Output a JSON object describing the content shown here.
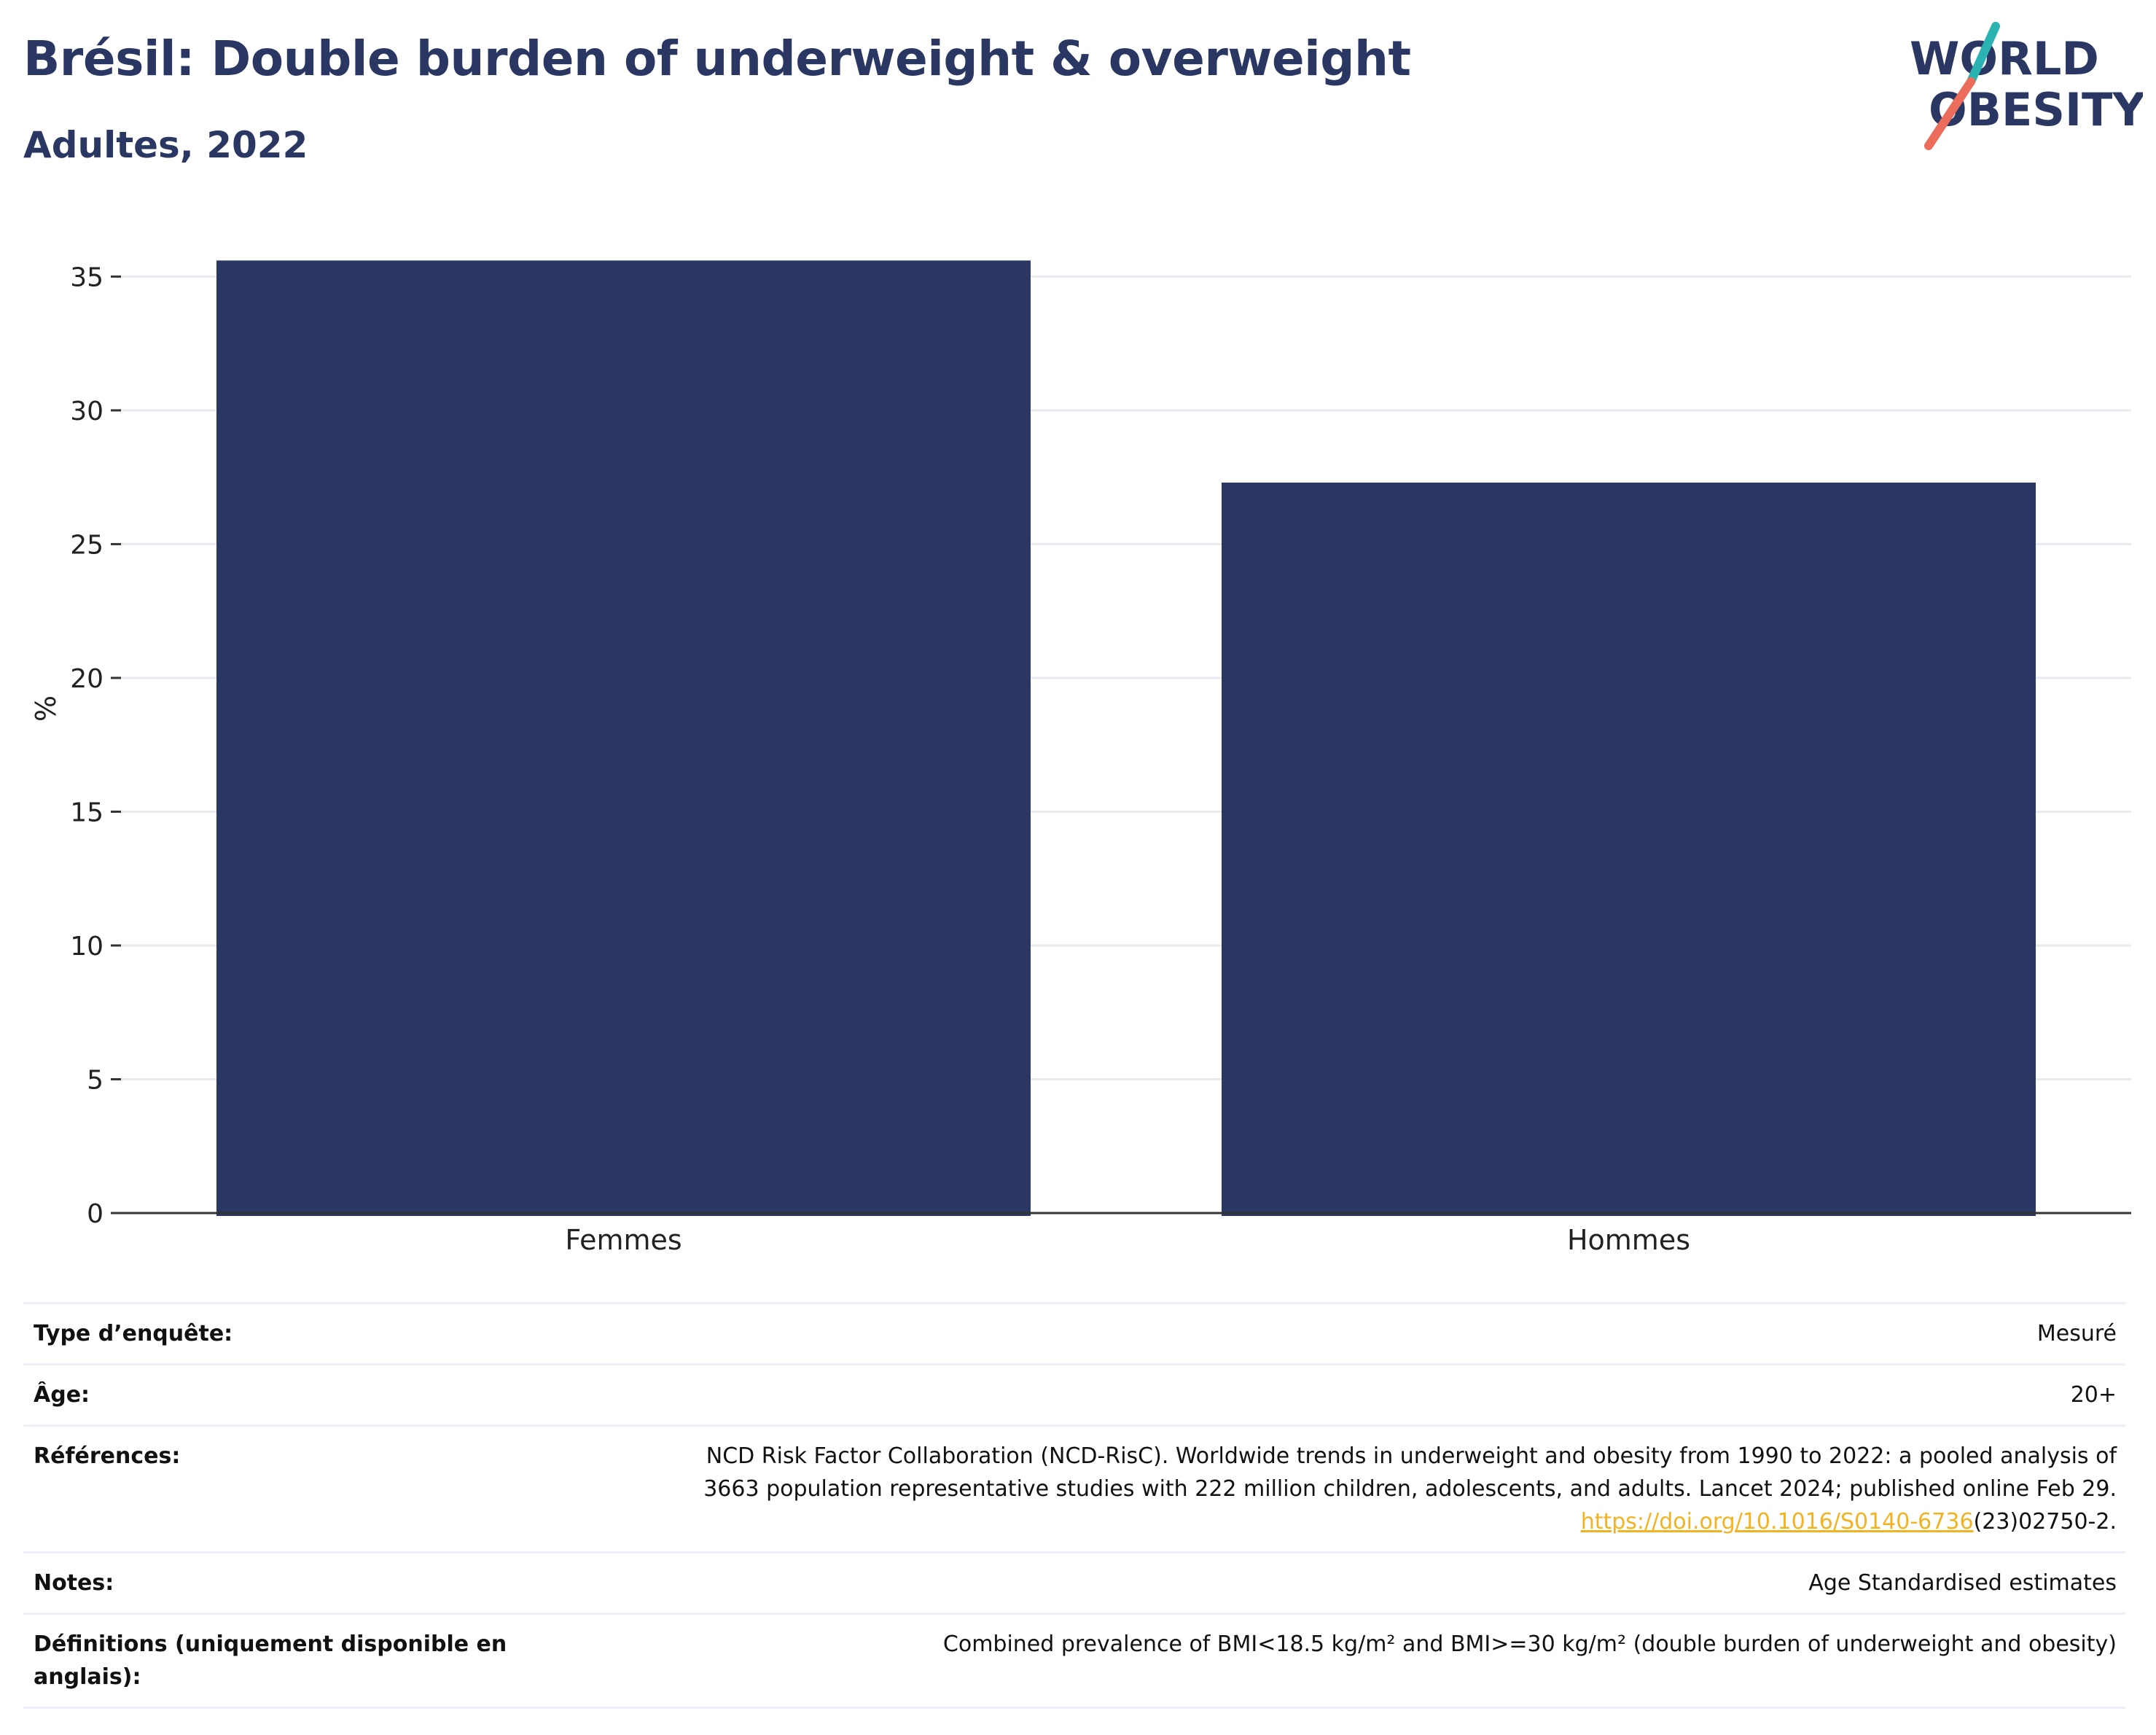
{
  "header": {
    "title": "Brésil: Double burden of underweight & overweight",
    "subtitle": "Adultes, 2022"
  },
  "logo": {
    "line1": "WORLD",
    "line2": "OBESITY",
    "text_color": "#2b3763",
    "accent_teal": "#2ab3b1",
    "accent_coral": "#ec6d5c"
  },
  "chart_data": {
    "type": "bar",
    "categories": [
      "Femmes",
      "Hommes"
    ],
    "values": [
      35.6,
      27.3
    ],
    "ylabel": "%",
    "ylim": [
      0,
      36.4
    ],
    "yticks": [
      0,
      5,
      10,
      15,
      20,
      25,
      30,
      35
    ],
    "bar_color": "#2b3763",
    "grid": true,
    "legend": "none"
  },
  "metadata": {
    "rows": [
      {
        "label": "Type d’enquête:",
        "value": "Mesuré"
      },
      {
        "label": "Âge:",
        "value": "20+"
      },
      {
        "label": "Références:",
        "value_lines": [
          "NCD Risk Factor Collaboration (NCD-RisC). Worldwide trends in underweight and obesity from 1990 to 2022: a pooled analysis of",
          "3663 population representative studies with 222 million children, adolescents, and adults. Lancet 2024; published online Feb 29."
        ],
        "link_text": "https://doi.org/10.1016/S0140-6736",
        "link_suffix": "(23)02750-2."
      },
      {
        "label": "Notes:",
        "value": "Age Standardised estimates"
      },
      {
        "label": "Définitions (uniquement disponible en anglais):",
        "value": "Combined prevalence of BMI<18.5 kg/m² and BMI>=30 kg/m² (double burden of underweight and obesity)"
      }
    ]
  }
}
